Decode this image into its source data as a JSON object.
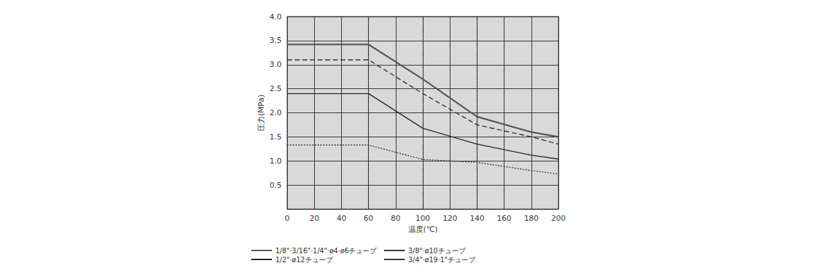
{
  "chart_data": {
    "type": "line",
    "x_label": "温度(℃)",
    "y_label": "圧力(MPa)",
    "x": [
      0,
      60,
      100,
      140,
      180,
      200
    ],
    "series": [
      {
        "name": "1/8\"·3/16\"·1/4\"·ø4·ø6チューブ",
        "color": "#555555",
        "line_style": "solid",
        "values": [
          3.42,
          3.42,
          2.7,
          1.92,
          1.6,
          1.5
        ]
      },
      {
        "name": "3/8\"·ø10チューブ",
        "color": "#333333",
        "line_style": "dashed",
        "values": [
          3.1,
          3.1,
          2.4,
          1.75,
          1.5,
          1.35
        ]
      },
      {
        "name": "1/2\"·ø12チューブ",
        "color": "#222222",
        "line_style": "solid",
        "values": [
          2.4,
          2.4,
          1.68,
          1.35,
          1.12,
          1.04
        ]
      },
      {
        "name": "3/4\"·ø19·1\"チューブ",
        "color": "#333333",
        "line_style": "dotted",
        "values": [
          1.33,
          1.33,
          1.03,
          0.97,
          0.8,
          0.73
        ]
      }
    ],
    "vlines": [
      60,
      100,
      140
    ],
    "xlim": [
      0,
      200
    ],
    "xticks": [
      0,
      20,
      40,
      60,
      80,
      100,
      120,
      140,
      160,
      180,
      200
    ],
    "ylim": [
      0,
      4
    ],
    "yticks": [
      0.5,
      {
        "value": 1,
        "label": "1.0"
      },
      1.5,
      {
        "value": 2,
        "label": "2.0"
      },
      2.5,
      {
        "value": 3,
        "label": "3.0"
      },
      3.5,
      {
        "value": 4,
        "label": "4.0"
      }
    ],
    "grid": true,
    "legend": "bottom"
  }
}
